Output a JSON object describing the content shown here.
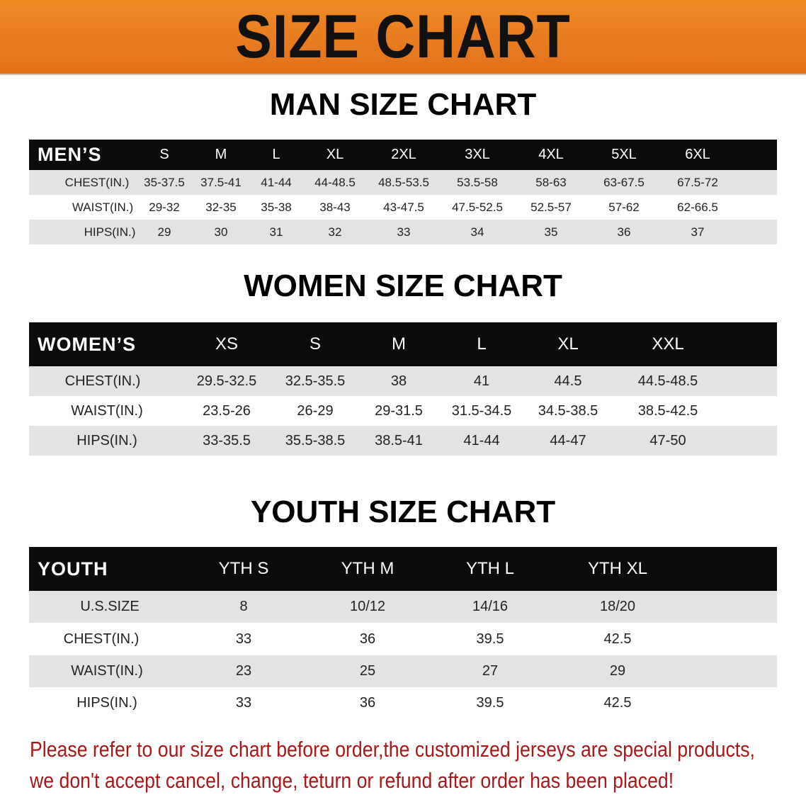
{
  "banner_title": "SIZE CHART",
  "chart_data": [
    {
      "type": "table",
      "title": "MAN SIZE CHART",
      "header_label": "MEN’S",
      "columns": [
        "S",
        "M",
        "L",
        "XL",
        "2XL",
        "3XL",
        "4XL",
        "5XL",
        "6XL"
      ],
      "rows": [
        {
          "label": "CHEST(IN.)",
          "values": [
            "35-37.5",
            "37.5-41",
            "41-44",
            "44-48.5",
            "48.5-53.5",
            "53.5-58",
            "58-63",
            "63-67.5",
            "67.5-72"
          ]
        },
        {
          "label": "WAIST(IN.)",
          "values": [
            "29-32",
            "32-35",
            "35-38",
            "38-43",
            "43-47.5",
            "47.5-52.5",
            "52.5-57",
            "57-62",
            "62-66.5"
          ]
        },
        {
          "label": "HIPS(IN.)",
          "values": [
            "29",
            "30",
            "31",
            "32",
            "33",
            "34",
            "35",
            "36",
            "37"
          ]
        }
      ]
    },
    {
      "type": "table",
      "title": "WOMEN SIZE CHART",
      "header_label": "WOMEN’S",
      "columns": [
        "XS",
        "S",
        "M",
        "L",
        "XL",
        "XXL"
      ],
      "rows": [
        {
          "label": "CHEST(IN.)",
          "values": [
            "29.5-32.5",
            "32.5-35.5",
            "38",
            "41",
            "44.5",
            "44.5-48.5"
          ]
        },
        {
          "label": "WAIST(IN.)",
          "values": [
            "23.5-26",
            "26-29",
            "29-31.5",
            "31.5-34.5",
            "34.5-38.5",
            "38.5-42.5"
          ]
        },
        {
          "label": "HIPS(IN.)",
          "values": [
            "33-35.5",
            "35.5-38.5",
            "38.5-41",
            "41-44",
            "44-47",
            "47-50"
          ]
        }
      ]
    },
    {
      "type": "table",
      "title": "YOUTH SIZE CHART",
      "header_label": "YOUTH",
      "columns": [
        "YTH S",
        "YTH M",
        "YTH L",
        "YTH XL"
      ],
      "rows": [
        {
          "label": "U.S.SIZE",
          "values": [
            "8",
            "10/12",
            "14/16",
            "18/20"
          ]
        },
        {
          "label": "CHEST(IN.)",
          "values": [
            "33",
            "36",
            "39.5",
            "42.5"
          ]
        },
        {
          "label": "WAIST(IN.)",
          "values": [
            "23",
            "25",
            "27",
            "29"
          ]
        },
        {
          "label": "HIPS(IN.)",
          "values": [
            "33",
            "36",
            "39.5",
            "42.5"
          ]
        }
      ]
    }
  ],
  "note": [
    "Please refer to our size chart before order,the customized jerseys are special products,",
    "we don't accept cancel, change, teturn or refund after order has been placed!"
  ],
  "colors": {
    "banner": "#e8781c",
    "header_bg": "#0c0c0c",
    "stripe": "#e3e3e4",
    "note": "#a81818"
  }
}
